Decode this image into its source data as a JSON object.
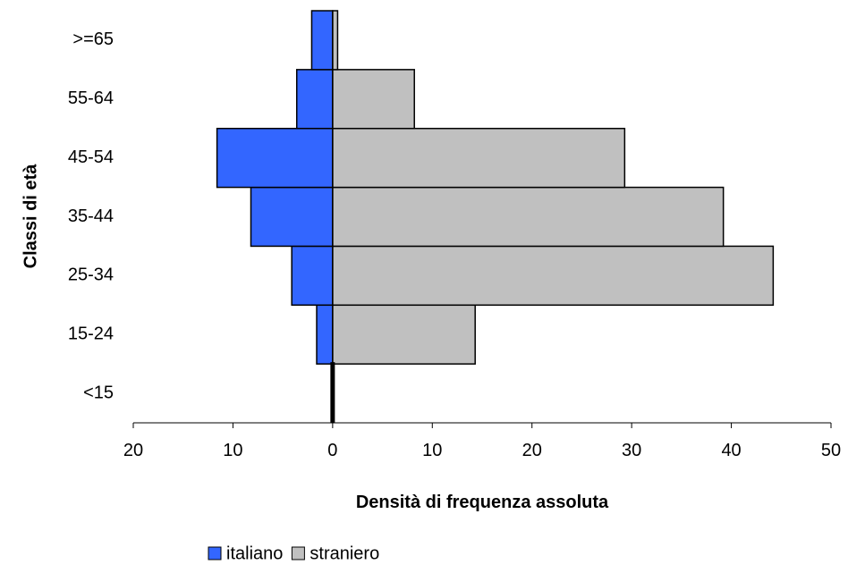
{
  "chart_data": {
    "type": "bar",
    "orientation": "horizontal",
    "layout": "population-pyramid",
    "categories": [
      "<15",
      "15-24",
      "25-34",
      "35-44",
      "45-54",
      "55-64",
      ">=65"
    ],
    "series": [
      {
        "name": "italiano",
        "color": "#3366FF",
        "side": "left",
        "values": [
          0,
          1.6,
          4.1,
          8.2,
          11.6,
          3.6,
          2.1
        ]
      },
      {
        "name": "straniero",
        "color": "#C0C0C0",
        "side": "right",
        "values": [
          0,
          14.3,
          44.2,
          39.2,
          29.3,
          8.2,
          0.5
        ]
      }
    ],
    "xlabel": "Densità di frequenza assoluta",
    "ylabel": "Classi di età",
    "xlim": [
      -20,
      50
    ],
    "x_ticks": [
      {
        "value": -20,
        "label": "20",
        "color": "#FF0000"
      },
      {
        "value": -10,
        "label": "10",
        "color": "#FF0000"
      },
      {
        "value": 0,
        "label": "0",
        "color": "#000000"
      },
      {
        "value": 10,
        "label": "10",
        "color": "#000000"
      },
      {
        "value": 20,
        "label": "20",
        "color": "#000000"
      },
      {
        "value": 30,
        "label": "30",
        "color": "#000000"
      },
      {
        "value": 40,
        "label": "40",
        "color": "#000000"
      },
      {
        "value": 50,
        "label": "50",
        "color": "#000000"
      }
    ],
    "grid": false,
    "legend_position": "bottom"
  }
}
